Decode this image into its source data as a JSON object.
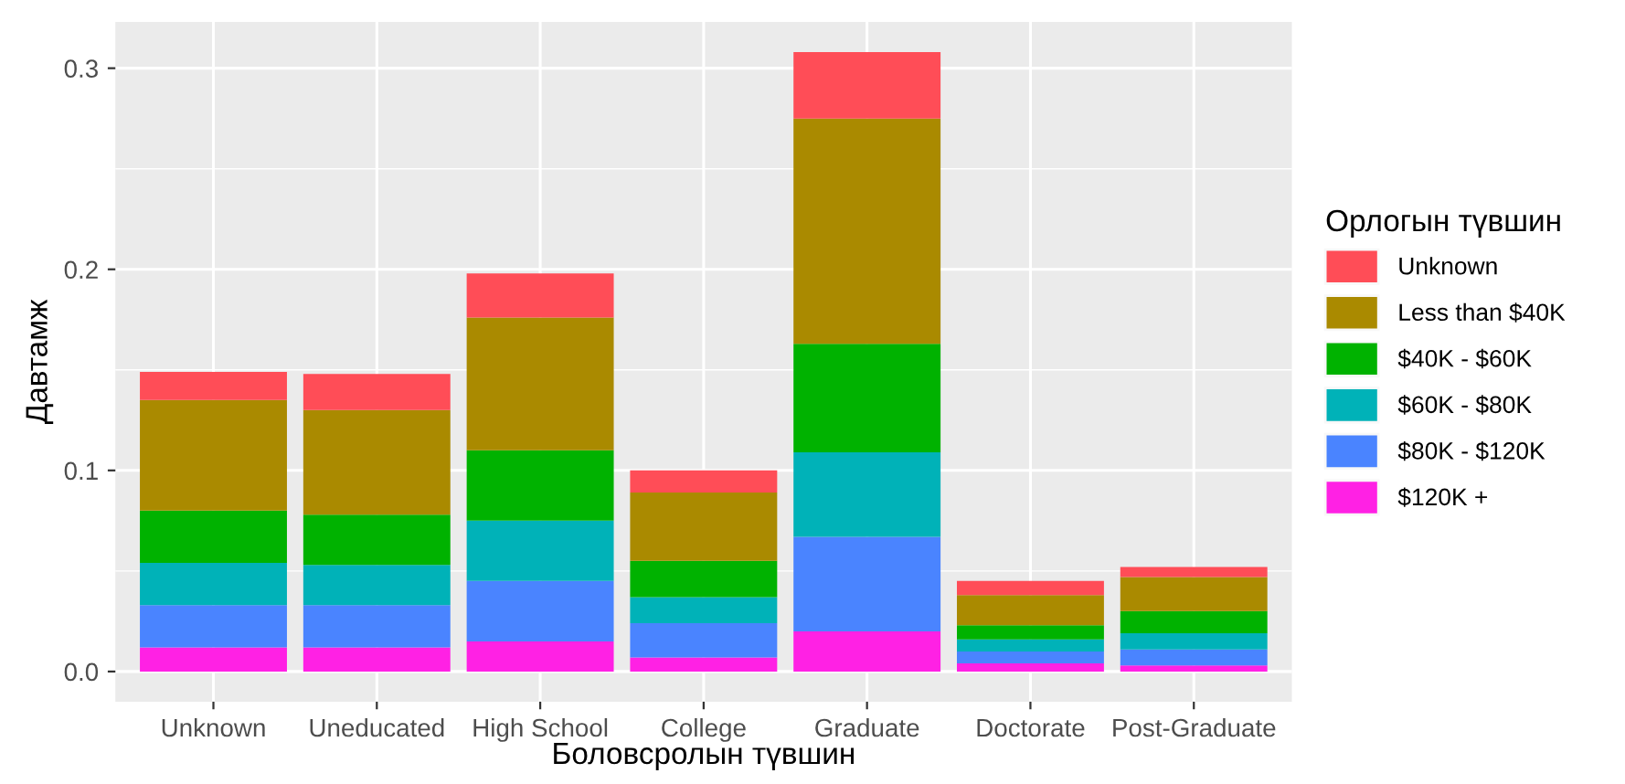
{
  "chart_data": {
    "type": "bar",
    "stacked": true,
    "xlabel": "Боловсролын түвшин",
    "ylabel": "Давтамж",
    "legend_title": "Орлогын түвшин",
    "categories": [
      "Unknown",
      "Uneducated",
      "High School",
      "College",
      "Graduate",
      "Doctorate",
      "Post-Graduate"
    ],
    "series": [
      {
        "name": "$120K +",
        "color": "#ff21e4",
        "values": [
          0.012,
          0.012,
          0.015,
          0.007,
          0.02,
          0.004,
          0.003
        ]
      },
      {
        "name": "$80K - $120K",
        "color": "#4a84ff",
        "values": [
          0.021,
          0.021,
          0.03,
          0.017,
          0.047,
          0.006,
          0.008
        ]
      },
      {
        "name": "$60K - $80K",
        "color": "#00b2b8",
        "values": [
          0.021,
          0.02,
          0.03,
          0.013,
          0.042,
          0.006,
          0.008
        ]
      },
      {
        "name": "$40K - $60K",
        "color": "#00b200",
        "values": [
          0.026,
          0.025,
          0.035,
          0.018,
          0.054,
          0.007,
          0.011
        ]
      },
      {
        "name": "Less than $40K",
        "color": "#aa8a00",
        "values": [
          0.055,
          0.052,
          0.066,
          0.034,
          0.112,
          0.015,
          0.017
        ]
      },
      {
        "name": "Unknown",
        "color": "#ff4d57",
        "values": [
          0.014,
          0.018,
          0.022,
          0.011,
          0.033,
          0.007,
          0.005
        ]
      }
    ],
    "ylim": [
      -0.015,
      0.323
    ],
    "yticks": [
      {
        "value": 0,
        "label": "0.0"
      },
      {
        "value": 0.1,
        "label": "0.1"
      },
      {
        "value": 0.2,
        "label": "0.2"
      },
      {
        "value": 0.3,
        "label": "0.3"
      }
    ],
    "grid": true,
    "legend": "right"
  }
}
